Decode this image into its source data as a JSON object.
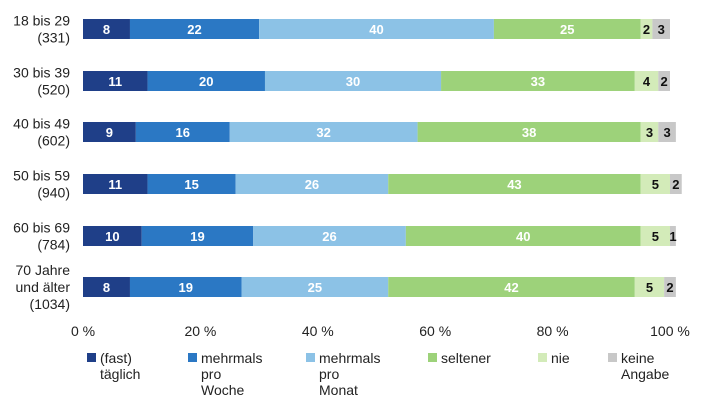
{
  "chart_data": {
    "type": "bar",
    "orientation": "horizontal",
    "stacked": true,
    "title": "",
    "xlabel": "",
    "ylabel": "",
    "xlim": [
      0,
      100
    ],
    "grid": false,
    "categories": [
      [
        "18 bis 29",
        "(331)"
      ],
      [
        "30 bis 39",
        "(520)"
      ],
      [
        "40 bis 49",
        "(602)"
      ],
      [
        "50 bis 59",
        "(940)"
      ],
      [
        "60 bis 69",
        "(784)"
      ],
      [
        "70 Jahre",
        "und älter",
        "(1034)"
      ]
    ],
    "x_ticks": [
      "0 %",
      "20 %",
      "40 %",
      "60 %",
      "80 %",
      "100 %"
    ],
    "x_tick_values": [
      0,
      20,
      40,
      60,
      80,
      100
    ],
    "series": [
      {
        "name": [
          "(fast)",
          "täglich"
        ],
        "color": "#1f3f88",
        "label_color": "#ffffff",
        "values": [
          8,
          11,
          9,
          11,
          10,
          8
        ]
      },
      {
        "name": [
          "mehrmals",
          "pro",
          "Woche"
        ],
        "color": "#2b78c4",
        "label_color": "#ffffff",
        "values": [
          22,
          20,
          16,
          15,
          19,
          19
        ]
      },
      {
        "name": [
          "mehrmals",
          "pro",
          "Monat"
        ],
        "color": "#8cc2e6",
        "label_color": "#ffffff",
        "values": [
          40,
          30,
          32,
          26,
          26,
          25
        ]
      },
      {
        "name": [
          "seltener"
        ],
        "color": "#9dd27a",
        "label_color": "#ffffff",
        "values": [
          25,
          33,
          38,
          43,
          40,
          42
        ]
      },
      {
        "name": [
          "nie"
        ],
        "color": "#d3ebb9",
        "label_color": "#111111",
        "values": [
          2,
          4,
          3,
          5,
          5,
          5
        ]
      },
      {
        "name": [
          "keine",
          "Angabe"
        ],
        "color": "#c8c8c8",
        "label_color": "#111111",
        "values": [
          3,
          2,
          3,
          2,
          1,
          2
        ]
      }
    ],
    "legend_position": "bottom"
  }
}
